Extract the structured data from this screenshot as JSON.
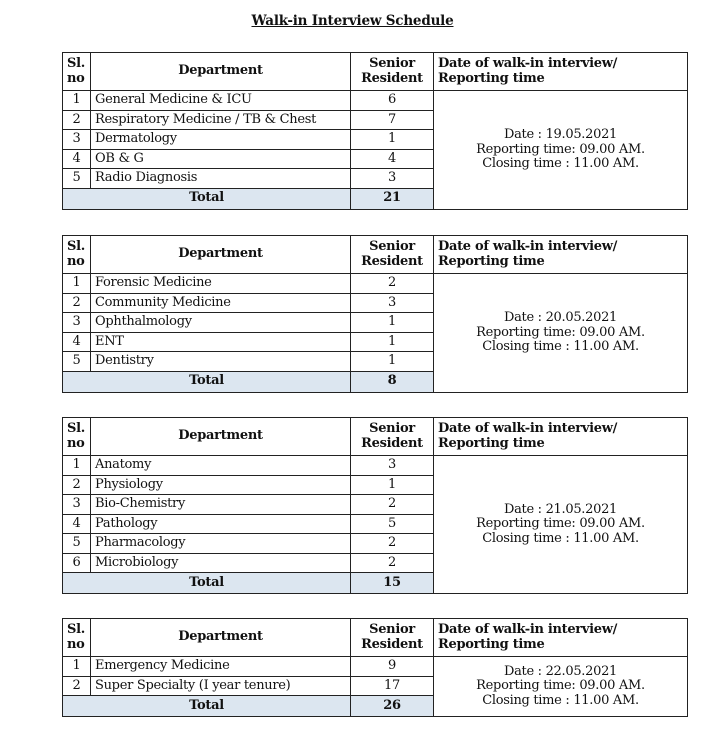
{
  "title": "Walk-in Interview Schedule",
  "colors": {
    "total_row_fill": "#dce6f0",
    "border": "#222222"
  },
  "headers": {
    "sl_line1": "Sl.",
    "sl_line2": "no",
    "department": "Department",
    "senior_line1": "Senior",
    "senior_line2": "Resident",
    "date_line1": "Date of walk-in interview/",
    "date_line2": "Reporting time"
  },
  "tables": [
    {
      "rows": [
        {
          "sl": "1",
          "department": "General Medicine & ICU",
          "senior_resident": "6"
        },
        {
          "sl": "2",
          "department": "Respiratory Medicine / TB & Chest",
          "senior_resident": "7"
        },
        {
          "sl": "3",
          "department": "Dermatology",
          "senior_resident": "1"
        },
        {
          "sl": "4",
          "department": "OB & G",
          "senior_resident": "4"
        },
        {
          "sl": "5",
          "department": "Radio Diagnosis",
          "senior_resident": "3"
        }
      ],
      "total_label": "Total",
      "total": "21",
      "date": "Date : 19.05.2021",
      "reporting": "Reporting time:  09.00 AM.",
      "closing": "Closing time : 11.00 AM."
    },
    {
      "rows": [
        {
          "sl": "1",
          "department": "Forensic Medicine",
          "senior_resident": "2"
        },
        {
          "sl": "2",
          "department": "Community Medicine",
          "senior_resident": "3"
        },
        {
          "sl": "3",
          "department": "Ophthalmology",
          "senior_resident": "1"
        },
        {
          "sl": "4",
          "department": "ENT",
          "senior_resident": "1"
        },
        {
          "sl": "5",
          "department": "Dentistry",
          "senior_resident": "1"
        }
      ],
      "total_label": "Total",
      "total": "8",
      "date": "Date : 20.05.2021",
      "reporting": "Reporting time:  09.00 AM.",
      "closing": "Closing time : 11.00 AM."
    },
    {
      "rows": [
        {
          "sl": "1",
          "department": "Anatomy",
          "senior_resident": "3"
        },
        {
          "sl": "2",
          "department": "Physiology",
          "senior_resident": "1"
        },
        {
          "sl": "3",
          "department": "Bio-Chemistry",
          "senior_resident": "2"
        },
        {
          "sl": "4",
          "department": "Pathology",
          "senior_resident": "5"
        },
        {
          "sl": "5",
          "department": "Pharmacology",
          "senior_resident": "2"
        },
        {
          "sl": "6",
          "department": "Microbiology",
          "senior_resident": "2"
        }
      ],
      "total_label": "Total",
      "total": "15",
      "date": "Date : 21.05.2021",
      "reporting": "Reporting time:  09.00 AM.",
      "closing": "Closing time : 11.00 AM."
    },
    {
      "rows": [
        {
          "sl": "1",
          "department": "Emergency Medicine",
          "senior_resident": "9"
        },
        {
          "sl": "2",
          "department": "Super Specialty (I year tenure)",
          "senior_resident": "17"
        }
      ],
      "total_label": "Total",
      "total": "26",
      "date": "Date : 22.05.2021",
      "reporting": "Reporting time:  09.00 AM.",
      "closing": "Closing time : 11.00 AM."
    }
  ]
}
